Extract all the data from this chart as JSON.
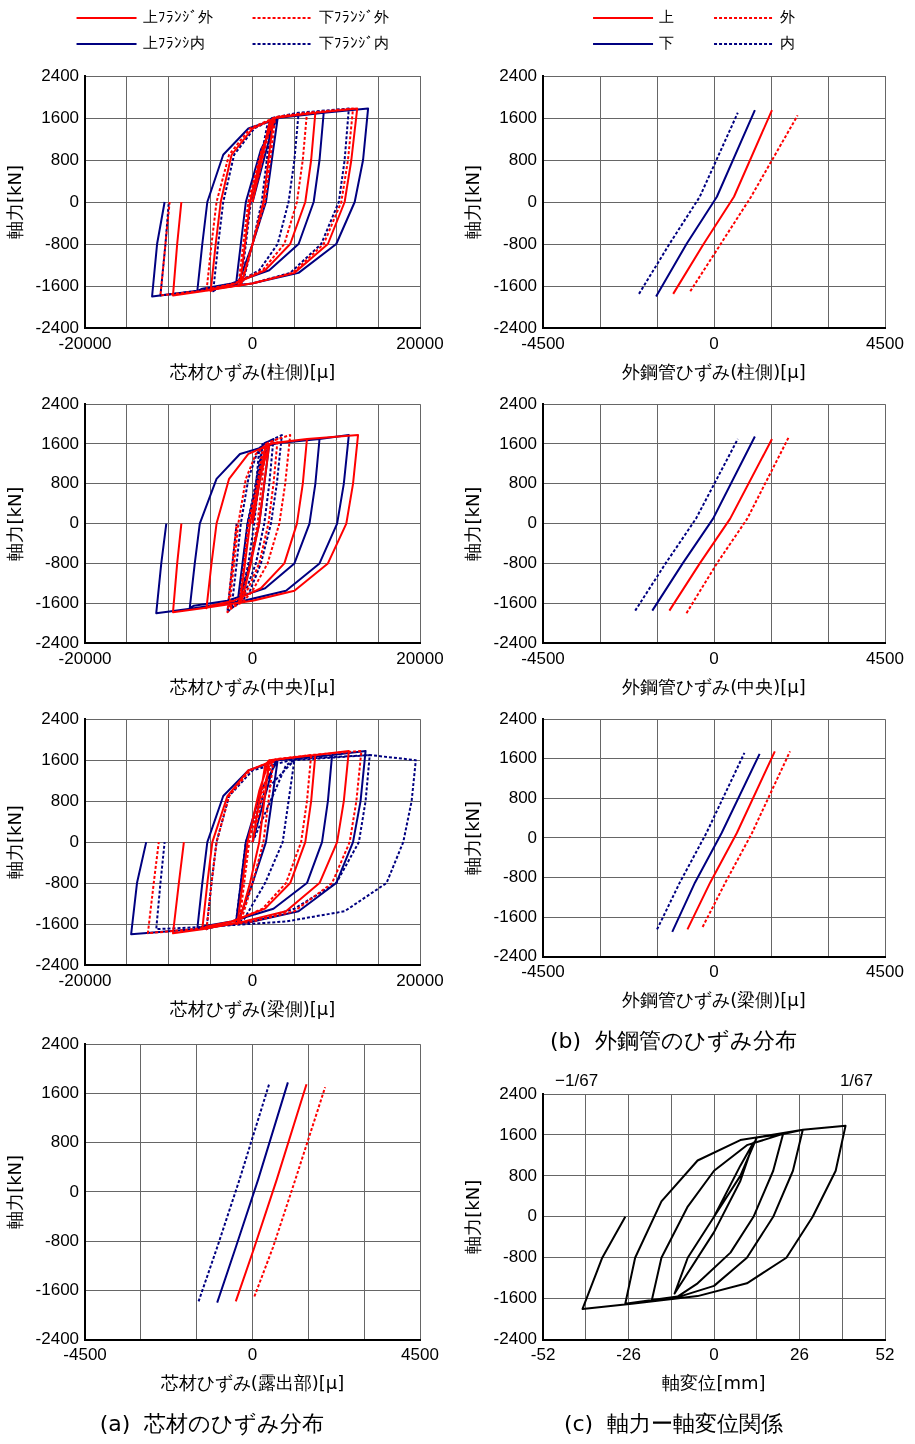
{
  "chart_data": [
    {
      "type": "line",
      "xlabel": "芯材ひずみ(柱側)[μ]",
      "ylabel": "軸力[kN]",
      "xlim": [
        -20000,
        20000
      ],
      "ylim": [
        -2400,
        2400
      ],
      "xticks": [
        -20000,
        {
          "value": -15000,
          "label": null
        },
        {
          "value": -10000,
          "label": null
        },
        {
          "value": -5000,
          "label": null
        },
        0,
        {
          "value": 5000,
          "label": null
        },
        {
          "value": 10000,
          "label": null
        },
        {
          "value": 15000,
          "label": null
        },
        20000
      ],
      "yticks": [
        -2400,
        -1600,
        -800,
        0,
        800,
        1600,
        2400
      ],
      "grid": true,
      "legend": "top",
      "series": [
        {
          "name": "上ﾌﾗﾝｼﾞ外",
          "color": "#ff0000",
          "line_style": "solid",
          "x": [
            0,
            2000,
            2500,
            1900,
            1300,
            0,
            -1200,
            -1500,
            -900,
            -300,
            1200,
            2500,
            7500,
            7000,
            6300,
            4500,
            1500,
            -2000,
            -4500,
            -5000,
            -4400,
            -3800,
            -2500,
            0,
            3000,
            7500,
            12500,
            11800,
            11000,
            9000,
            5000,
            0,
            -6000,
            -9500,
            -9000,
            -8500
          ],
          "values": [
            0,
            1500,
            1600,
            800,
            0,
            -800,
            -1500,
            -1600,
            -800,
            0,
            1000,
            1600,
            1700,
            800,
            0,
            -800,
            -1300,
            -1550,
            -1650,
            -1700,
            -800,
            0,
            900,
            1400,
            1620,
            1700,
            1780,
            800,
            0,
            -800,
            -1350,
            -1550,
            -1700,
            -1780,
            -800,
            0
          ]
        },
        {
          "name": "下ﾌﾗﾝｼﾞ外",
          "color": "#ff0000",
          "line_style": "dashed",
          "x": [
            0,
            2200,
            2700,
            2100,
            1500,
            0,
            -1300,
            -1700,
            -1100,
            -500,
            1100,
            2700,
            6500,
            6000,
            5300,
            3800,
            1200,
            -2200,
            -5000,
            -5500,
            -4900,
            -4300,
            -2800,
            -300,
            2800,
            6500,
            12000,
            11400,
            10600,
            8500,
            4800,
            0,
            -6500,
            -11000,
            -10400,
            -9900
          ],
          "values": [
            0,
            1500,
            1600,
            800,
            0,
            -800,
            -1500,
            -1600,
            -800,
            0,
            1000,
            1600,
            1700,
            800,
            0,
            -800,
            -1300,
            -1550,
            -1650,
            -1700,
            -800,
            0,
            900,
            1400,
            1620,
            1700,
            1780,
            800,
            0,
            -800,
            -1350,
            -1550,
            -1700,
            -1780,
            -800,
            0
          ]
        },
        {
          "name": "上ﾌﾗﾝｼ内",
          "color": "#000080",
          "line_style": "solid",
          "x": [
            0,
            2500,
            3000,
            2300,
            1600,
            0,
            -1600,
            -2000,
            -1400,
            -800,
            1000,
            3000,
            8500,
            8000,
            7300,
            5500,
            2000,
            -2500,
            -6000,
            -6600,
            -6000,
            -5400,
            -3500,
            -500,
            3500,
            8500,
            13800,
            13200,
            12200,
            10000,
            5500,
            0,
            -7000,
            -12000,
            -11400,
            -10500
          ],
          "values": [
            0,
            1500,
            1600,
            800,
            0,
            -800,
            -1500,
            -1600,
            -800,
            0,
            1000,
            1600,
            1700,
            800,
            0,
            -800,
            -1300,
            -1550,
            -1650,
            -1700,
            -800,
            0,
            900,
            1400,
            1620,
            1700,
            1780,
            800,
            0,
            -800,
            -1350,
            -1550,
            -1700,
            -1800,
            -800,
            0
          ]
        },
        {
          "name": "下ﾌﾗﾝｼﾞ内",
          "color": "#000080",
          "line_style": "dashed",
          "x": [
            0,
            1800,
            2300,
            1700,
            1100,
            0,
            -1100,
            -1400,
            -800,
            -200,
            1300,
            2300,
            5500,
            5000,
            4300,
            3000,
            800,
            -2000,
            -4200,
            -4700,
            -4100,
            -3500,
            -2200,
            200,
            3000,
            5500,
            11500,
            11000,
            10300,
            8200,
            4500,
            0,
            -6800,
            -11000,
            -10400,
            -10000
          ],
          "values": [
            0,
            1500,
            1600,
            800,
            0,
            -800,
            -1500,
            -1600,
            -800,
            0,
            1000,
            1600,
            1700,
            800,
            0,
            -800,
            -1300,
            -1550,
            -1650,
            -1700,
            -800,
            0,
            900,
            1400,
            1620,
            1700,
            1780,
            800,
            0,
            -800,
            -1350,
            -1550,
            -1700,
            -1780,
            -800,
            0
          ]
        }
      ]
    },
    {
      "type": "line",
      "xlabel": "外鋼管ひずみ(柱側)[μ]",
      "ylabel": "軸力[kN]",
      "xlim": [
        -4500,
        4500
      ],
      "ylim": [
        -2400,
        2400
      ],
      "xticks": [
        -4500,
        {
          "value": -3000,
          "label": null
        },
        {
          "value": -1500,
          "label": null
        },
        0,
        {
          "value": 1500,
          "label": null
        },
        {
          "value": 3000,
          "label": null
        },
        4500
      ],
      "yticks": [
        -2400,
        -1600,
        -800,
        0,
        800,
        1600,
        2400
      ],
      "grid": true,
      "legend": "top",
      "series": [
        {
          "name": "上",
          "color": "#ff0000",
          "line_style": "solid",
          "x": [
            -1075,
            -275,
            525,
            1525
          ],
          "values": [
            -1750,
            -800,
            100,
            1750
          ]
        },
        {
          "name": "外",
          "color": "#ff0000",
          "line_style": "dashed",
          "x": [
            -625,
            175,
            975,
            2200
          ],
          "values": [
            -1700,
            -800,
            100,
            1650
          ]
        },
        {
          "name": "下",
          "color": "#000080",
          "line_style": "solid",
          "x": [
            -1525,
            -725,
            75,
            1075
          ],
          "values": [
            -1800,
            -800,
            100,
            1750
          ]
        },
        {
          "name": "内",
          "color": "#000080",
          "line_style": "dashed",
          "x": [
            -1975,
            -1175,
            -375,
            625
          ],
          "values": [
            -1750,
            -800,
            100,
            1700
          ]
        }
      ]
    },
    {
      "type": "line",
      "xlabel": "芯材ひずみ(中央)[μ]",
      "ylabel": "軸力[kN]",
      "xlim": [
        -20000,
        20000
      ],
      "ylim": [
        -2400,
        2400
      ],
      "xticks": [
        -20000,
        {
          "value": -15000,
          "label": null
        },
        {
          "value": -10000,
          "label": null
        },
        {
          "value": -5000,
          "label": null
        },
        0,
        {
          "value": 5000,
          "label": null
        },
        {
          "value": 10000,
          "label": null
        },
        {
          "value": 15000,
          "label": null
        },
        20000
      ],
      "yticks": [
        -2400,
        -1600,
        -800,
        0,
        800,
        1600,
        2400
      ],
      "grid": true,
      "series": [
        {
          "color": "#ff0000",
          "line_style": "solid",
          "x": [
            0,
            1500,
            2000,
            1400,
            800,
            -200,
            -1200,
            -1500,
            -900,
            -300,
            1000,
            2000,
            6500,
            6000,
            5300,
            3800,
            1000,
            -2200,
            -5000,
            -5500,
            -4900,
            -4300,
            -2800,
            -500,
            2500,
            6500,
            12600,
            12000,
            11200,
            9000,
            5000,
            0,
            -6000,
            -9500,
            -9000,
            -8500
          ],
          "values": [
            0,
            1500,
            1600,
            800,
            0,
            -800,
            -1500,
            -1600,
            -800,
            0,
            1000,
            1600,
            1700,
            800,
            0,
            -800,
            -1300,
            -1550,
            -1650,
            -1700,
            -800,
            0,
            900,
            1400,
            1620,
            1700,
            1780,
            800,
            0,
            -800,
            -1350,
            -1550,
            -1700,
            -1780,
            -800,
            0
          ]
        },
        {
          "color": "#ff0000",
          "line_style": "dashed",
          "x": [
            0,
            1200,
            1600,
            1100,
            600,
            -300,
            -1300,
            -1600,
            -1000,
            -500,
            800,
            1600,
            3000,
            2500,
            1900,
            800,
            -500,
            -1500,
            -2500,
            -2800,
            -2200,
            -1700,
            -800,
            400,
            1800,
            3000,
            4500,
            3900,
            3200,
            1800,
            0,
            -1000,
            -2500,
            -3000,
            -2400,
            -1900
          ],
          "values": [
            0,
            1500,
            1600,
            800,
            0,
            -800,
            -1500,
            -1600,
            -800,
            0,
            1000,
            1600,
            1700,
            800,
            0,
            -800,
            -1300,
            -1550,
            -1650,
            -1700,
            -800,
            0,
            900,
            1400,
            1620,
            1700,
            1780,
            800,
            0,
            -800,
            -1350,
            -1550,
            -1700,
            -1780,
            -800,
            0
          ]
        },
        {
          "color": "#000080",
          "line_style": "solid",
          "x": [
            0,
            1500,
            2000,
            1400,
            800,
            -300,
            -1500,
            -1800,
            -1200,
            -600,
            800,
            2000,
            8000,
            7500,
            6800,
            5000,
            1500,
            -3000,
            -7000,
            -7500,
            -6900,
            -6300,
            -4300,
            -1500,
            3000,
            8000,
            11500,
            10900,
            10100,
            8000,
            4000,
            -1000,
            -7000,
            -11500,
            -10900,
            -10300
          ],
          "values": [
            0,
            1500,
            1600,
            800,
            0,
            -800,
            -1500,
            -1600,
            -800,
            0,
            1000,
            1600,
            1700,
            800,
            0,
            -800,
            -1300,
            -1550,
            -1650,
            -1700,
            -800,
            0,
            900,
            1400,
            1620,
            1700,
            1780,
            800,
            0,
            -800,
            -1350,
            -1550,
            -1700,
            -1800,
            -800,
            0
          ]
        },
        {
          "color": "#000080",
          "line_style": "dashed",
          "x": [
            0,
            800,
            1200,
            700,
            200,
            -500,
            -1400,
            -1700,
            -1100,
            -600,
            600,
            1200,
            2500,
            2000,
            1400,
            400,
            -700,
            -1500,
            -2200,
            -2500,
            -1900,
            -1400,
            -500,
            500,
            1500,
            2500,
            3500,
            2900,
            2200,
            1000,
            -300,
            -1200,
            -2500,
            -3000,
            -2400,
            -1900
          ],
          "values": [
            0,
            1500,
            1600,
            800,
            0,
            -800,
            -1500,
            -1600,
            -800,
            0,
            1000,
            1600,
            1700,
            800,
            0,
            -800,
            -1300,
            -1550,
            -1650,
            -1700,
            -800,
            0,
            900,
            1400,
            1620,
            1700,
            1780,
            800,
            0,
            -800,
            -1350,
            -1550,
            -1700,
            -1780,
            -800,
            0
          ]
        }
      ]
    },
    {
      "type": "line",
      "xlabel": "外鋼管ひずみ(中央)[μ]",
      "ylabel": "軸力[kN]",
      "xlim": [
        -4500,
        4500
      ],
      "ylim": [
        -2400,
        2400
      ],
      "xticks": [
        -4500,
        {
          "value": -3000,
          "label": null
        },
        {
          "value": -1500,
          "label": null
        },
        0,
        {
          "value": 1500,
          "label": null
        },
        {
          "value": 3000,
          "label": null
        },
        4500
      ],
      "yticks": [
        -2400,
        -1600,
        -800,
        0,
        800,
        1600,
        2400
      ],
      "grid": true,
      "series": [
        {
          "color": "#ff0000",
          "line_style": "solid",
          "x": [
            -1175,
            -375,
            425,
            1525
          ],
          "values": [
            -1750,
            -800,
            100,
            1700
          ]
        },
        {
          "color": "#ff0000",
          "line_style": "dashed",
          "x": [
            -725,
            75,
            875,
            1975
          ],
          "values": [
            -1800,
            -800,
            100,
            1750
          ]
        },
        {
          "color": "#000080",
          "line_style": "solid",
          "x": [
            -1625,
            -825,
            -25,
            1075
          ],
          "values": [
            -1750,
            -800,
            100,
            1750
          ]
        },
        {
          "color": "#000080",
          "line_style": "dashed",
          "x": [
            -2075,
            -1275,
            -475,
            625
          ],
          "values": [
            -1750,
            -800,
            100,
            1700
          ]
        }
      ]
    },
    {
      "type": "line",
      "xlabel": "芯材ひずみ(梁側)[μ]",
      "ylabel": "軸力[kN]",
      "xlim": [
        -20000,
        20000
      ],
      "ylim": [
        -2400,
        2400
      ],
      "xticks": [
        -20000,
        {
          "value": -15000,
          "label": null
        },
        {
          "value": -10000,
          "label": null
        },
        {
          "value": -5000,
          "label": null
        },
        0,
        {
          "value": 5000,
          "label": null
        },
        {
          "value": 10000,
          "label": null
        },
        {
          "value": 15000,
          "label": null
        },
        20000
      ],
      "yticks": [
        -2400,
        -1600,
        -800,
        0,
        800,
        1600,
        2400
      ],
      "grid": true,
      "series": [
        {
          "color": "#ff0000",
          "line_style": "solid",
          "x": [
            0,
            1500,
            2000,
            1400,
            800,
            -300,
            -1500,
            -1800,
            -1200,
            -600,
            800,
            2000,
            7500,
            7000,
            6300,
            4500,
            1500,
            -2500,
            -5500,
            -6000,
            -5400,
            -4800,
            -3000,
            -500,
            3000,
            7500,
            11500,
            10900,
            10100,
            8000,
            4000,
            -1000,
            -6000,
            -9500,
            -8800,
            -8200
          ],
          "values": [
            0,
            1500,
            1600,
            800,
            0,
            -800,
            -1500,
            -1600,
            -800,
            0,
            1000,
            1600,
            1700,
            800,
            0,
            -800,
            -1300,
            -1550,
            -1650,
            -1700,
            -800,
            0,
            900,
            1400,
            1620,
            1700,
            1780,
            800,
            0,
            -800,
            -1350,
            -1550,
            -1700,
            -1780,
            -800,
            0
          ]
        },
        {
          "color": "#ff0000",
          "line_style": "dashed",
          "x": [
            0,
            2000,
            2500,
            1900,
            1300,
            0,
            -1300,
            -1600,
            -1000,
            -400,
            1100,
            2500,
            7000,
            6500,
            5800,
            4000,
            1200,
            -2200,
            -5000,
            -5500,
            -4900,
            -4300,
            -2800,
            -300,
            2800,
            7000,
            13000,
            12400,
            11600,
            9500,
            5000,
            0,
            -7000,
            -12500,
            -11800,
            -11200
          ],
          "values": [
            0,
            1500,
            1600,
            800,
            0,
            -800,
            -1500,
            -1600,
            -800,
            0,
            1000,
            1600,
            1700,
            800,
            0,
            -800,
            -1300,
            -1550,
            -1650,
            -1700,
            -800,
            0,
            900,
            1400,
            1620,
            1700,
            1780,
            800,
            0,
            -800,
            -1350,
            -1550,
            -1700,
            -1780,
            -800,
            0
          ]
        },
        {
          "color": "#000080",
          "line_style": "solid",
          "x": [
            0,
            2500,
            3000,
            2300,
            1600,
            0,
            -1600,
            -2000,
            -1400,
            -800,
            1000,
            3000,
            9500,
            9000,
            8300,
            6500,
            2500,
            -2500,
            -6000,
            -6600,
            -6000,
            -5400,
            -3500,
            -500,
            3500,
            9500,
            13500,
            12900,
            12000,
            10000,
            5500,
            0,
            -7000,
            -14500,
            -13800,
            -12700
          ],
          "values": [
            0,
            1500,
            1600,
            800,
            0,
            -800,
            -1500,
            -1600,
            -800,
            0,
            1000,
            1600,
            1700,
            800,
            0,
            -800,
            -1300,
            -1550,
            -1650,
            -1700,
            -800,
            0,
            900,
            1400,
            1620,
            1700,
            1780,
            800,
            0,
            -800,
            -1350,
            -1550,
            -1700,
            -1800,
            -800,
            0
          ]
        },
        {
          "color": "#000080",
          "line_style": "dashed",
          "x": [
            0,
            4000,
            5000,
            4300,
            3600,
            1500,
            -1000,
            -2000,
            -1400,
            -800,
            1500,
            5000,
            14000,
            13500,
            12700,
            10000,
            5000,
            0,
            -4500,
            -5500,
            -4900,
            -4300,
            -2800,
            0,
            5000,
            14000,
            19500,
            19000,
            18000,
            16000,
            11000,
            4000,
            -5000,
            -11500,
            -11000,
            -10500
          ],
          "values": [
            0,
            1500,
            1600,
            800,
            0,
            -800,
            -1500,
            -1600,
            -800,
            0,
            1000,
            1600,
            1700,
            800,
            0,
            -800,
            -1300,
            -1550,
            -1650,
            -1700,
            -800,
            0,
            900,
            1400,
            1620,
            1700,
            1600,
            800,
            0,
            -800,
            -1350,
            -1550,
            -1650,
            -1700,
            -800,
            0
          ]
        }
      ]
    },
    {
      "type": "line",
      "title": "(b)  外鋼管のひずみ分布",
      "xlabel": "外鋼管ひずみ(梁側)[μ]",
      "ylabel": "軸力[kN]",
      "xlim": [
        -4500,
        4500
      ],
      "ylim": [
        -2400,
        2400
      ],
      "xticks": [
        -4500,
        {
          "value": -3000,
          "label": null
        },
        {
          "value": -1500,
          "label": null
        },
        0,
        {
          "value": 1500,
          "label": null
        },
        {
          "value": 3000,
          "label": null
        },
        4500
      ],
      "yticks": [
        -2400,
        -1600,
        -800,
        0,
        800,
        1600,
        2400
      ],
      "grid": true,
      "series": [
        {
          "color": "#ff0000",
          "line_style": "solid",
          "x": [
            -700,
            -100,
            600,
            1600
          ],
          "values": [
            -1850,
            -900,
            100,
            1750
          ]
        },
        {
          "color": "#ff0000",
          "line_style": "dashed",
          "x": [
            -300,
            300,
            1000,
            2000
          ],
          "values": [
            -1800,
            -900,
            100,
            1750
          ]
        },
        {
          "color": "#000080",
          "line_style": "solid",
          "x": [
            -1100,
            -500,
            200,
            1200
          ],
          "values": [
            -1900,
            -900,
            100,
            1700
          ]
        },
        {
          "color": "#000080",
          "line_style": "dashed",
          "x": [
            -1500,
            -900,
            -200,
            800
          ],
          "values": [
            -1850,
            -900,
            100,
            1720
          ]
        }
      ]
    },
    {
      "type": "line",
      "title": "(a)  芯材のひずみ分布",
      "xlabel": "芯材ひずみ(露出部)[μ]",
      "ylabel": "軸力[kN]",
      "xlim": [
        -4500,
        4500
      ],
      "ylim": [
        -2400,
        2400
      ],
      "xticks": [
        -4500,
        {
          "value": -3000,
          "label": null
        },
        {
          "value": -1500,
          "label": null
        },
        0,
        {
          "value": 1500,
          "label": null
        },
        {
          "value": 3000,
          "label": null
        },
        4500
      ],
      "yticks": [
        -2400,
        -1600,
        -800,
        0,
        800,
        1600,
        2400
      ],
      "grid": true,
      "series": [
        {
          "color": "#ff0000",
          "line_style": "solid",
          "x": [
            -450,
            50,
            650,
            1450
          ],
          "values": [
            -1780,
            -900,
            200,
            1750
          ]
        },
        {
          "color": "#ff0000",
          "line_style": "dashed",
          "x": [
            50,
            550,
            1150,
            1950
          ],
          "values": [
            -1700,
            -900,
            200,
            1700
          ]
        },
        {
          "color": "#000080",
          "line_style": "solid",
          "x": [
            -950,
            -450,
            150,
            950
          ],
          "values": [
            -1800,
            -900,
            200,
            1780
          ]
        },
        {
          "color": "#000080",
          "line_style": "dashed",
          "x": [
            -1450,
            -950,
            -350,
            450
          ],
          "values": [
            -1780,
            -900,
            200,
            1760
          ]
        }
      ]
    },
    {
      "type": "line",
      "title": "(c)  軸力ー軸変位関係",
      "xlabel": "軸変位[mm]",
      "ylabel": "軸力[kN]",
      "xlim": [
        -52,
        52
      ],
      "ylim": [
        -2400,
        2400
      ],
      "xticks": [
        -52,
        {
          "value": -39,
          "label": null
        },
        -26,
        {
          "value": -13,
          "label": null
        },
        0,
        {
          "value": 13,
          "label": null
        },
        26,
        {
          "value": 39,
          "label": null
        },
        52
      ],
      "annotations": [
        "−1/67",
        "1/67"
      ],
      "yticks": [
        -2400,
        -1600,
        -800,
        0,
        800,
        1600,
        2400
      ],
      "grid": true,
      "series": [
        {
          "color": "#000000",
          "line_style": "solid",
          "x": [
            0,
            8,
            12,
            8,
            0,
            -8,
            -12,
            -8,
            0,
            8,
            13,
            21,
            18,
            12,
            5,
            -5,
            -12,
            -19,
            -16,
            -8,
            0,
            10,
            21,
            27,
            24,
            18,
            10,
            0,
            -10,
            -27,
            -24,
            -16,
            -5,
            8,
            27,
            40,
            37,
            30,
            22,
            10,
            -5,
            -25,
            -40,
            -34,
            -27
          ],
          "values": [
            0,
            1000,
            1450,
            700,
            -300,
            -1100,
            -1500,
            -800,
            0,
            800,
            1550,
            1620,
            900,
            0,
            -700,
            -1300,
            -1600,
            -1650,
            -800,
            200,
            900,
            1400,
            1620,
            1700,
            900,
            0,
            -800,
            -1350,
            -1550,
            -1700,
            -800,
            300,
            1100,
            1500,
            1700,
            1780,
            900,
            0,
            -800,
            -1300,
            -1550,
            -1700,
            -1800,
            -800,
            0
          ]
        }
      ]
    }
  ]
}
